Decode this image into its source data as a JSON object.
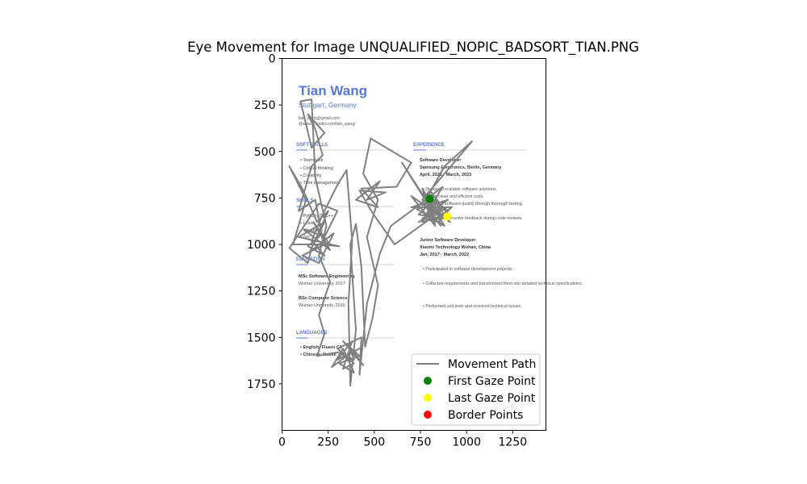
{
  "chart_data": {
    "type": "scatter",
    "title": "Eye Movement for Image UNQUALIFIED_NOPIC_BADSORT_TIAN.PNG",
    "xlabel": "",
    "ylabel": "",
    "xlim": [
      0,
      1430
    ],
    "ylim": [
      2000,
      0
    ],
    "xticks": [
      0,
      250,
      500,
      750,
      1000,
      1250
    ],
    "yticks": [
      0,
      250,
      500,
      750,
      1000,
      1250,
      1500,
      1750
    ],
    "legend_position": "lower-right",
    "grid": false,
    "colors": {
      "path": "#808080",
      "first": "#008000",
      "last": "#ffff00",
      "border": "#ff0000"
    },
    "legend": [
      {
        "label": "Movement Path",
        "kind": "line",
        "color": "#808080"
      },
      {
        "label": "First Gaze Point",
        "kind": "dot",
        "color": "#008000"
      },
      {
        "label": "Last Gaze Point",
        "kind": "dot",
        "color": "#ffff00"
      },
      {
        "label": "Border Points",
        "kind": "dot",
        "color": "#ff0000"
      }
    ],
    "first_point": {
      "x": 800,
      "y": 755
    },
    "last_point": {
      "x": 895,
      "y": 850
    },
    "path": [
      [
        800,
        755
      ],
      [
        760,
        790
      ],
      [
        840,
        760
      ],
      [
        790,
        830
      ],
      [
        870,
        800
      ],
      [
        760,
        860
      ],
      [
        850,
        880
      ],
      [
        900,
        820
      ],
      [
        820,
        760
      ],
      [
        740,
        840
      ],
      [
        880,
        860
      ],
      [
        700,
        740
      ],
      [
        830,
        900
      ],
      [
        790,
        720
      ],
      [
        910,
        880
      ],
      [
        760,
        760
      ],
      [
        1030,
        445
      ],
      [
        880,
        580
      ],
      [
        780,
        760
      ],
      [
        650,
        560
      ],
      [
        820,
        830
      ],
      [
        740,
        880
      ],
      [
        890,
        800
      ],
      [
        610,
        1000
      ],
      [
        490,
        830
      ],
      [
        420,
        710
      ],
      [
        560,
        720
      ],
      [
        460,
        760
      ],
      [
        530,
        660
      ],
      [
        400,
        760
      ],
      [
        520,
        800
      ],
      [
        430,
        700
      ],
      [
        620,
        690
      ],
      [
        700,
        560
      ],
      [
        480,
        430
      ],
      [
        440,
        620
      ],
      [
        520,
        760
      ],
      [
        460,
        960
      ],
      [
        520,
        1220
      ],
      [
        490,
        1400
      ],
      [
        450,
        1550
      ],
      [
        430,
        1120
      ],
      [
        400,
        890
      ],
      [
        370,
        1000
      ],
      [
        400,
        1460
      ],
      [
        370,
        1760
      ],
      [
        360,
        1320
      ],
      [
        380,
        980
      ],
      [
        350,
        600
      ],
      [
        300,
        680
      ],
      [
        220,
        840
      ],
      [
        160,
        980
      ],
      [
        230,
        1060
      ],
      [
        140,
        1010
      ],
      [
        210,
        950
      ],
      [
        120,
        920
      ],
      [
        260,
        1030
      ],
      [
        170,
        880
      ],
      [
        250,
        990
      ],
      [
        110,
        1060
      ],
      [
        200,
        1100
      ],
      [
        280,
        940
      ],
      [
        150,
        1040
      ],
      [
        230,
        880
      ],
      [
        90,
        960
      ],
      [
        310,
        1010
      ],
      [
        190,
        1000
      ],
      [
        60,
        1000
      ],
      [
        130,
        760
      ],
      [
        40,
        580
      ],
      [
        110,
        700
      ],
      [
        190,
        880
      ],
      [
        250,
        820
      ],
      [
        160,
        1020
      ],
      [
        140,
        1100
      ],
      [
        40,
        1020
      ],
      [
        120,
        900
      ],
      [
        200,
        780
      ],
      [
        300,
        820
      ],
      [
        220,
        980
      ],
      [
        180,
        760
      ],
      [
        90,
        820
      ],
      [
        160,
        580
      ],
      [
        220,
        520
      ],
      [
        180,
        380
      ],
      [
        140,
        300
      ],
      [
        230,
        400
      ],
      [
        160,
        480
      ],
      [
        100,
        230
      ],
      [
        160,
        220
      ],
      [
        180,
        640
      ],
      [
        240,
        900
      ],
      [
        200,
        1060
      ],
      [
        260,
        1200
      ],
      [
        200,
        1380
      ],
      [
        230,
        1480
      ],
      [
        190,
        1600
      ],
      [
        300,
        1580
      ],
      [
        390,
        1620
      ],
      [
        360,
        1540
      ],
      [
        440,
        1650
      ],
      [
        330,
        1520
      ],
      [
        420,
        1600
      ],
      [
        310,
        1640
      ],
      [
        390,
        1690
      ],
      [
        330,
        1560
      ],
      [
        270,
        1660
      ],
      [
        350,
        1600
      ],
      [
        420,
        1560
      ],
      [
        300,
        1620
      ],
      [
        380,
        1520
      ],
      [
        330,
        1670
      ],
      [
        390,
        1640
      ],
      [
        300,
        1560
      ],
      [
        430,
        1500
      ],
      [
        420,
        1700
      ],
      [
        460,
        1320
      ],
      [
        530,
        1050
      ],
      [
        590,
        900
      ],
      [
        780,
        760
      ],
      [
        870,
        690
      ],
      [
        780,
        840
      ],
      [
        900,
        760
      ],
      [
        730,
        810
      ],
      [
        880,
        900
      ],
      [
        760,
        700
      ],
      [
        820,
        880
      ],
      [
        920,
        800
      ],
      [
        700,
        800
      ],
      [
        840,
        760
      ],
      [
        760,
        880
      ],
      [
        900,
        840
      ],
      [
        810,
        720
      ],
      [
        860,
        900
      ],
      [
        780,
        800
      ],
      [
        895,
        850
      ]
    ]
  },
  "resume": {
    "name": "Tian Wang",
    "location": "Stuttgart, Germany",
    "email": "tian_wang@gmail.com",
    "linkedin": "@www.linkedin.com/tian_wang/",
    "sections": {
      "soft_skills": "SOFT SKILLS",
      "skills": "SKILLS",
      "education": "EDUCATION",
      "languages": "LANGUAGES",
      "experience": "EXPERIENCE"
    },
    "soft_skills": [
      "Teamwork",
      "Critical thinking",
      "Creativity",
      "Time management"
    ],
    "skills": [
      "Python, C, C++",
      "Linux",
      "MongoDB",
      "GIT"
    ],
    "education": [
      {
        "degree": "MSc Software Engineering",
        "school": "Wuhan University, 2017"
      },
      {
        "degree": "BSc Computer Science",
        "school": "Wuhan University, 2015"
      }
    ],
    "languages": [
      "English: Fluent C1",
      "Chinese: Native"
    ],
    "jobs": [
      {
        "title": "Software Developer",
        "company": "Samsung Electronics, Berlin, Germany",
        "dates": "April, 2022 - March, 2023",
        "bullets": [
          "Designed scalable software solutions.",
          "Wrote clean and efficient code.",
          "Improved software quality through thorough testing.",
          "Offered constructive feedback during code reviews."
        ]
      },
      {
        "title": "Junior Software Developer",
        "company": "Xiaomi Technology Wuhan, China",
        "dates": "Jan, 2017 - March, 2022",
        "bullets": [
          "Participated in software development projects.",
          "Collected requirements and transformed them into detailed technical specifications.",
          "Performed unit tests and resolved technical issues"
        ]
      }
    ]
  }
}
